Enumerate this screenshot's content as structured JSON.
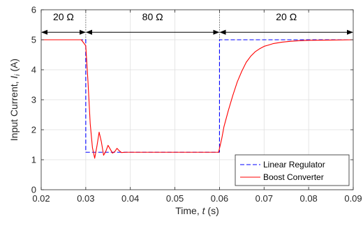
{
  "chart_data": {
    "type": "line",
    "xlabel_prefix": "Time, ",
    "xlabel_var": "t",
    "xlabel_suffix": " (s)",
    "ylabel_prefix": "Input Current, ",
    "ylabel_var": "I",
    "ylabel_sub": "i",
    "ylabel_suffix": " (A)",
    "xlim": [
      0.02,
      0.09
    ],
    "ylim": [
      0,
      6
    ],
    "xticks": [
      0.02,
      0.03,
      0.04,
      0.05,
      0.06,
      0.07,
      0.08,
      0.09
    ],
    "xtick_labels": [
      "0.02",
      "0.03",
      "0.04",
      "0.05",
      "0.06",
      "0.07",
      "0.08",
      "0.09"
    ],
    "yticks": [
      0,
      1,
      2,
      3,
      4,
      5,
      6
    ],
    "ytick_labels": [
      "0",
      "1",
      "2",
      "3",
      "4",
      "5",
      "6"
    ],
    "grid": true,
    "legend_position": "bottom-right",
    "series": [
      {
        "name": "Linear Regulator",
        "color": "#0000ff",
        "dash": "dashed",
        "x": [
          0.02,
          0.03,
          0.03,
          0.06,
          0.06,
          0.09
        ],
        "y": [
          5.0,
          5.0,
          1.25,
          1.25,
          5.0,
          5.0
        ]
      },
      {
        "name": "Boost Converter",
        "color": "#ff0000",
        "dash": "solid",
        "x": [
          0.02,
          0.029,
          0.03,
          0.0305,
          0.031,
          0.0315,
          0.032,
          0.0325,
          0.033,
          0.0335,
          0.034,
          0.0345,
          0.035,
          0.0355,
          0.036,
          0.0365,
          0.037,
          0.0375,
          0.038,
          0.039,
          0.04,
          0.045,
          0.05,
          0.055,
          0.0598,
          0.0605,
          0.061,
          0.062,
          0.063,
          0.064,
          0.065,
          0.066,
          0.067,
          0.068,
          0.069,
          0.07,
          0.072,
          0.074,
          0.076,
          0.078,
          0.08,
          0.085,
          0.09
        ],
        "y": [
          5.0,
          5.0,
          4.8,
          3.6,
          2.2,
          1.4,
          1.05,
          1.45,
          1.92,
          1.6,
          1.15,
          1.28,
          1.48,
          1.35,
          1.22,
          1.27,
          1.38,
          1.3,
          1.24,
          1.25,
          1.25,
          1.25,
          1.25,
          1.25,
          1.25,
          1.7,
          2.1,
          2.65,
          3.15,
          3.6,
          3.95,
          4.25,
          4.45,
          4.6,
          4.7,
          4.78,
          4.87,
          4.92,
          4.95,
          4.97,
          4.98,
          4.99,
          5.0
        ]
      }
    ],
    "annotations": [
      {
        "label": "20 Ω",
        "x_from": 0.02,
        "x_to": 0.03,
        "y": 5.25
      },
      {
        "label": "80 Ω",
        "x_from": 0.03,
        "x_to": 0.06,
        "y": 5.25
      },
      {
        "label": "20 Ω",
        "x_from": 0.06,
        "x_to": 0.09,
        "y": 5.25
      }
    ],
    "colors": {
      "grid": "#dfdfdf",
      "axis": "#262626",
      "arrow": "#000000"
    }
  }
}
